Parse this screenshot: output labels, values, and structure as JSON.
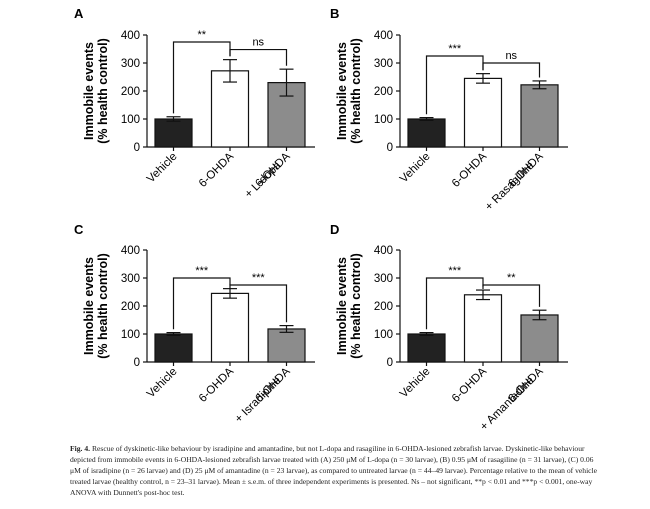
{
  "chart_data": [
    {
      "type": "bar",
      "panel": "A",
      "ylabel": [
        "Immobile events",
        "(% health control)"
      ],
      "ylim": [
        0,
        400
      ],
      "yticks": [
        0,
        100,
        200,
        300,
        400
      ],
      "categories": [
        [
          "Vehicle"
        ],
        [
          "6-OHDA"
        ],
        [
          "6-OHDA",
          "+ L-dopa"
        ]
      ],
      "values": [
        100,
        272,
        230
      ],
      "errors": [
        8,
        40,
        48
      ],
      "bar_colors": [
        "#222222",
        "#ffffff",
        "#8c8c8c"
      ],
      "comparisons": [
        {
          "label": "**",
          "from": 0,
          "to": 1,
          "level": 375
        },
        {
          "label": "ns",
          "from": 1,
          "to": 2,
          "level": 348
        }
      ]
    },
    {
      "type": "bar",
      "panel": "B",
      "ylabel": [
        "Immobile events",
        "(% health control)"
      ],
      "ylim": [
        0,
        400
      ],
      "yticks": [
        0,
        100,
        200,
        300,
        400
      ],
      "categories": [
        [
          "Vehicle"
        ],
        [
          "6-OHDA"
        ],
        [
          "6-OHDA",
          "+ Rasagiline"
        ]
      ],
      "values": [
        100,
        245,
        222
      ],
      "errors": [
        5,
        17,
        14
      ],
      "bar_colors": [
        "#222222",
        "#ffffff",
        "#8c8c8c"
      ],
      "comparisons": [
        {
          "label": "***",
          "from": 0,
          "to": 1,
          "level": 325
        },
        {
          "label": "ns",
          "from": 1,
          "to": 2,
          "level": 300
        }
      ]
    },
    {
      "type": "bar",
      "panel": "C",
      "ylabel": [
        "Immobile events",
        "(% health control)"
      ],
      "ylim": [
        0,
        400
      ],
      "yticks": [
        0,
        100,
        200,
        300,
        400
      ],
      "categories": [
        [
          "Vehicle"
        ],
        [
          "6-OHDA"
        ],
        [
          "6-OHDA",
          "+ Isradipine"
        ]
      ],
      "values": [
        100,
        245,
        118
      ],
      "errors": [
        5,
        17,
        12
      ],
      "bar_colors": [
        "#222222",
        "#ffffff",
        "#8c8c8c"
      ],
      "comparisons": [
        {
          "label": "***",
          "from": 0,
          "to": 1,
          "level": 300
        },
        {
          "label": "***",
          "from": 1,
          "to": 2,
          "level": 275
        }
      ]
    },
    {
      "type": "bar",
      "panel": "D",
      "ylabel": [
        "Immobile events",
        "(% health control)"
      ],
      "ylim": [
        0,
        400
      ],
      "yticks": [
        0,
        100,
        200,
        300,
        400
      ],
      "categories": [
        [
          "Vehicle"
        ],
        [
          "6-OHDA"
        ],
        [
          "6-OHDA",
          "+ Amantadine"
        ]
      ],
      "values": [
        100,
        240,
        168
      ],
      "errors": [
        5,
        17,
        17
      ],
      "bar_colors": [
        "#222222",
        "#ffffff",
        "#8c8c8c"
      ],
      "comparisons": [
        {
          "label": "***",
          "from": 0,
          "to": 1,
          "level": 300
        },
        {
          "label": "**",
          "from": 1,
          "to": 2,
          "level": 275
        }
      ]
    }
  ],
  "caption": {
    "label": "Fig. 4.",
    "text": "Rescue of dyskinetic-like behaviour by isradipine and amantadine, but not L-dopa and rasagiline in 6-OHDA-lesioned zebrafish larvae. Dyskinetic-like behaviour depicted from immobile events in 6-OHDA-lesioned zebrafish larvae treated with (A) 250 μM of L-dopa (n = 30 larvae), (B) 0.95 μM of rasagiline (n = 31 larvae), (C) 0.06 μM of isradipine (n = 26 larvae) and (D) 25 μM of amantadine (n = 23 larvae), as compared to untreated larvae (n = 44–49 larvae). Percentage relative to the mean of vehicle treated larvae (healthy control, n = 23–31 larvae). Mean ± s.e.m. of three independent experiments is presented. Ns – not significant, **p < 0.01 and ***p < 0.001, one-way ANOVA with Dunnett's post-hoc test."
  }
}
